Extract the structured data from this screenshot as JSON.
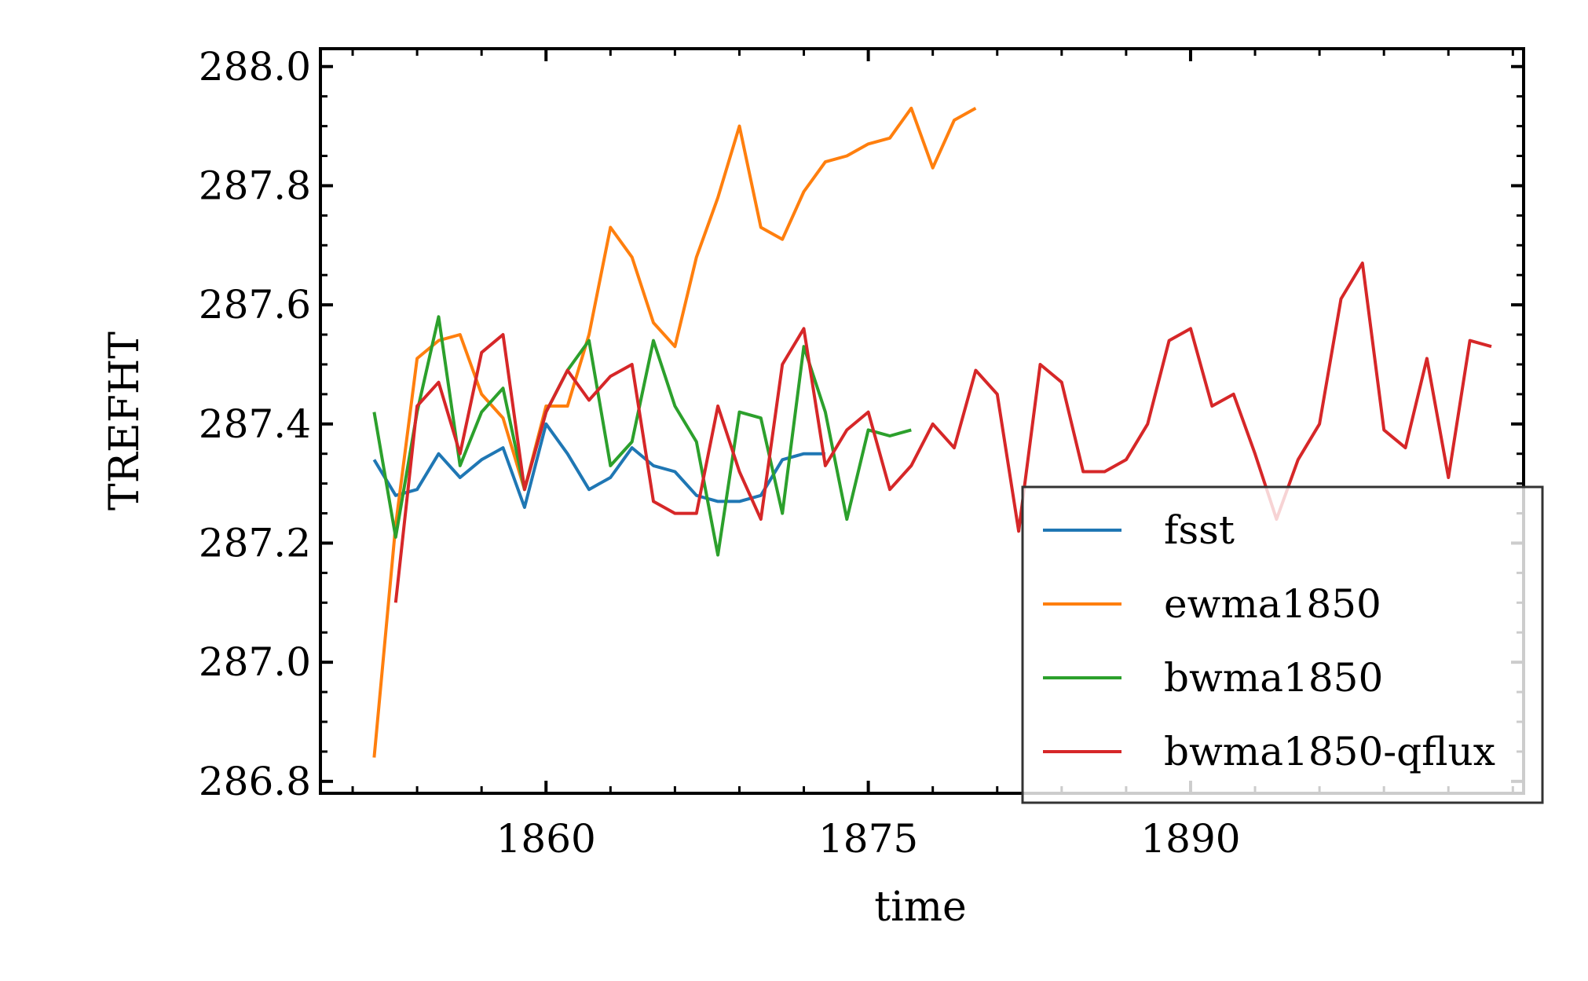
{
  "chart_data": {
    "type": "line",
    "xlabel": "time",
    "ylabel": "TREFHT",
    "xlim": [
      1849.5,
      1905.5
    ],
    "ylim": [
      286.78,
      288.03
    ],
    "xticks": [
      1860,
      1875,
      1890
    ],
    "yticks": [
      286.8,
      287.0,
      287.2,
      287.4,
      287.6,
      287.8,
      288.0
    ],
    "ytick_labels": [
      "286.8",
      "287.0",
      "287.2",
      "287.4",
      "287.6",
      "287.8",
      "288.0"
    ],
    "xtick_labels": [
      "1860",
      "1875",
      "1890"
    ],
    "grid": false,
    "legend": "lower-right",
    "series": [
      {
        "name": "fsst",
        "color": "#1f77b4",
        "x": [
          1852,
          1853,
          1854,
          1855,
          1856,
          1857,
          1858,
          1859,
          1860,
          1861,
          1862,
          1863,
          1864,
          1865,
          1866,
          1867,
          1868,
          1869,
          1870,
          1871,
          1872,
          1873
        ],
        "y": [
          287.34,
          287.28,
          287.29,
          287.35,
          287.31,
          287.34,
          287.36,
          287.26,
          287.4,
          287.35,
          287.29,
          287.31,
          287.36,
          287.33,
          287.32,
          287.28,
          287.27,
          287.27,
          287.28,
          287.34,
          287.35,
          287.35
        ]
      },
      {
        "name": "ewma1850",
        "color": "#ff7f0e",
        "x": [
          1852,
          1853,
          1854,
          1855,
          1856,
          1857,
          1858,
          1859,
          1860,
          1861,
          1862,
          1863,
          1864,
          1865,
          1866,
          1867,
          1868,
          1869,
          1870,
          1871,
          1872,
          1873,
          1874,
          1875,
          1876,
          1877,
          1878,
          1879,
          1880
        ],
        "y": [
          286.84,
          287.23,
          287.51,
          287.54,
          287.55,
          287.45,
          287.41,
          287.29,
          287.43,
          287.43,
          287.55,
          287.73,
          287.68,
          287.57,
          287.53,
          287.68,
          287.78,
          287.9,
          287.73,
          287.71,
          287.79,
          287.84,
          287.85,
          287.87,
          287.88,
          287.93,
          287.83,
          287.91,
          287.93
        ]
      },
      {
        "name": "bwma1850",
        "color": "#2ca02c",
        "x": [
          1852,
          1853,
          1854,
          1855,
          1856,
          1857,
          1858,
          1859,
          1860,
          1861,
          1862,
          1863,
          1864,
          1865,
          1866,
          1867,
          1868,
          1869,
          1870,
          1871,
          1872,
          1873,
          1874,
          1875,
          1876,
          1877
        ],
        "y": [
          287.42,
          287.21,
          287.42,
          287.58,
          287.33,
          287.42,
          287.46,
          287.29,
          287.42,
          287.49,
          287.54,
          287.33,
          287.37,
          287.54,
          287.43,
          287.37,
          287.18,
          287.42,
          287.41,
          287.25,
          287.53,
          287.42,
          287.24,
          287.39,
          287.38,
          287.39
        ]
      },
      {
        "name": "bwma1850-qflux",
        "color": "#d62728",
        "x": [
          1853,
          1854,
          1855,
          1856,
          1857,
          1858,
          1859,
          1860,
          1861,
          1862,
          1863,
          1864,
          1865,
          1866,
          1867,
          1868,
          1869,
          1870,
          1871,
          1872,
          1873,
          1874,
          1875,
          1876,
          1877,
          1878,
          1879,
          1880,
          1881,
          1882,
          1883,
          1884,
          1885,
          1886,
          1887,
          1888,
          1889,
          1890,
          1891,
          1892,
          1893,
          1894,
          1895,
          1896,
          1897,
          1898,
          1899,
          1900,
          1901,
          1902,
          1903,
          1904
        ],
        "y": [
          287.1,
          287.43,
          287.47,
          287.35,
          287.52,
          287.55,
          287.29,
          287.42,
          287.49,
          287.44,
          287.48,
          287.5,
          287.27,
          287.25,
          287.25,
          287.43,
          287.32,
          287.24,
          287.5,
          287.56,
          287.33,
          287.39,
          287.42,
          287.29,
          287.33,
          287.4,
          287.36,
          287.49,
          287.45,
          287.22,
          287.5,
          287.47,
          287.32,
          287.32,
          287.34,
          287.4,
          287.54,
          287.56,
          287.43,
          287.45,
          287.35,
          287.24,
          287.34,
          287.4,
          287.61,
          287.67,
          287.39,
          287.36,
          287.51,
          287.31,
          287.54,
          287.53
        ]
      }
    ]
  }
}
